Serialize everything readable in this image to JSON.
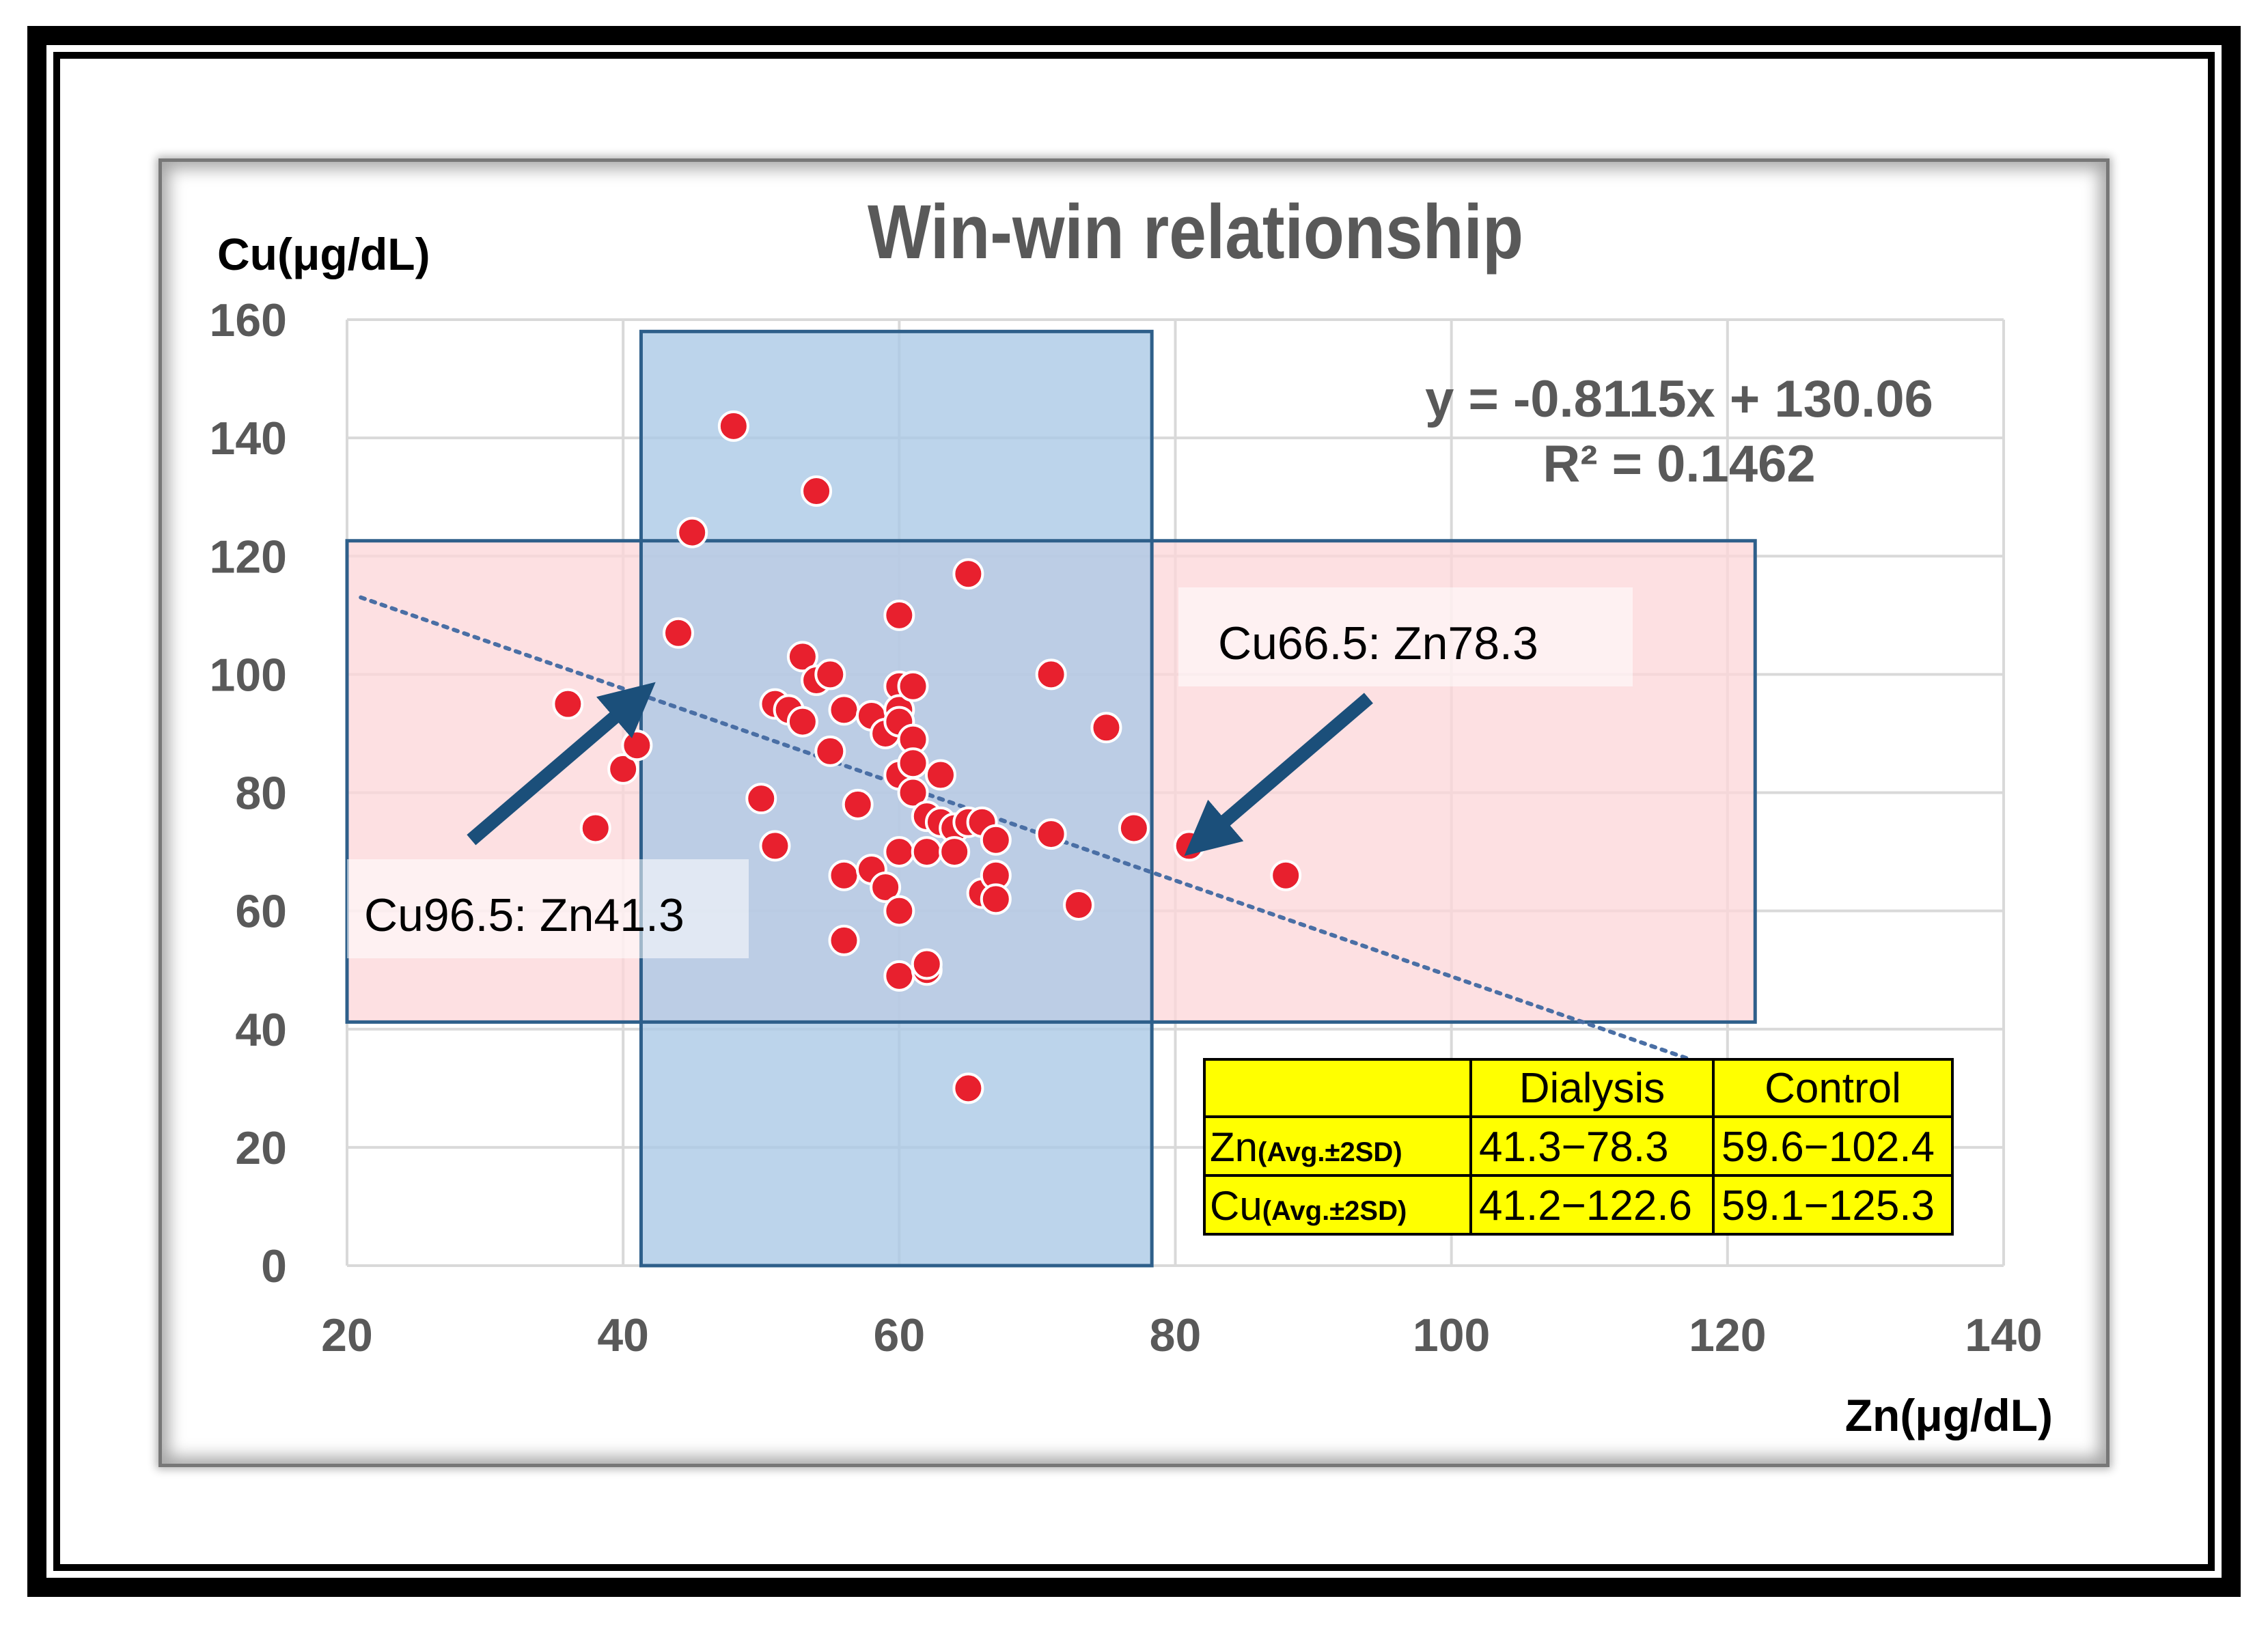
{
  "chart_data": {
    "type": "scatter",
    "title": "Win-win relationship",
    "xlabel": "Zn(μg/dL)",
    "ylabel": "Cu(μg/dL)",
    "xlim": [
      20,
      140
    ],
    "ylim": [
      0,
      160
    ],
    "x_ticks": [
      20,
      40,
      60,
      80,
      100,
      120,
      140
    ],
    "y_ticks": [
      0,
      20,
      40,
      60,
      80,
      100,
      120,
      140,
      160
    ],
    "grid": true,
    "trendline": {
      "equation": "y = -0.8115x + 130.06",
      "r_squared": "R² = 0.1462",
      "slope": -0.8115,
      "intercept": 130.06,
      "x_range": [
        21,
        118
      ]
    },
    "ranges": [
      {
        "name": "Dialysis Zn range",
        "x": [
          41.3,
          78.3
        ],
        "y": [
          0,
          158
        ],
        "color": "#a9c8e6"
      },
      {
        "name": "Dialysis Cu range",
        "x": [
          20,
          122
        ],
        "y": [
          41.2,
          122.6
        ],
        "color": "#fcd5d8"
      }
    ],
    "annotations": [
      {
        "text": "Cu66.5: Zn78.3",
        "arrow_from": [
          94,
          96
        ],
        "arrow_to": [
          82,
          72
        ]
      },
      {
        "text": "Cu96.5: Zn41.3",
        "arrow_from": [
          29,
          72
        ],
        "arrow_to": [
          41,
          96
        ]
      }
    ],
    "points": [
      [
        36,
        95
      ],
      [
        38,
        74
      ],
      [
        40,
        84
      ],
      [
        41,
        88
      ],
      [
        44,
        107
      ],
      [
        45,
        124
      ],
      [
        48,
        142
      ],
      [
        50,
        79
      ],
      [
        51,
        95
      ],
      [
        51,
        71
      ],
      [
        52,
        94
      ],
      [
        53,
        92
      ],
      [
        53,
        103
      ],
      [
        54,
        99
      ],
      [
        54,
        131
      ],
      [
        55,
        100
      ],
      [
        55,
        87
      ],
      [
        56,
        94
      ],
      [
        56,
        66
      ],
      [
        56,
        55
      ],
      [
        57,
        78
      ],
      [
        58,
        93
      ],
      [
        58,
        67
      ],
      [
        59,
        64
      ],
      [
        59,
        90
      ],
      [
        60,
        98
      ],
      [
        60,
        94
      ],
      [
        60,
        92
      ],
      [
        60,
        70
      ],
      [
        60,
        60
      ],
      [
        60,
        49
      ],
      [
        60,
        110
      ],
      [
        60,
        83
      ],
      [
        61,
        98
      ],
      [
        61,
        89
      ],
      [
        61,
        85
      ],
      [
        61,
        80
      ],
      [
        62,
        76
      ],
      [
        62,
        70
      ],
      [
        62,
        50
      ],
      [
        62,
        51
      ],
      [
        63,
        83
      ],
      [
        63,
        75
      ],
      [
        64,
        74
      ],
      [
        64,
        70
      ],
      [
        65,
        75
      ],
      [
        65,
        117
      ],
      [
        65,
        30
      ],
      [
        66,
        75
      ],
      [
        66,
        63
      ],
      [
        67,
        72
      ],
      [
        67,
        66
      ],
      [
        67,
        62
      ],
      [
        71,
        100
      ],
      [
        71,
        73
      ],
      [
        73,
        61
      ],
      [
        75,
        91
      ],
      [
        77,
        74
      ],
      [
        81,
        71
      ],
      [
        88,
        66
      ]
    ],
    "point_color": "#e8202e"
  },
  "stats_table": {
    "headers": [
      "",
      "Dialysis",
      "Control"
    ],
    "rows": [
      {
        "label": "Zn",
        "sub": "(Avg.±2SD)",
        "dialysis": "41.3−78.3",
        "control": "59.6−102.4"
      },
      {
        "label": "Cu",
        "sub": "(Avg.±2SD)",
        "dialysis": "41.2−122.6",
        "control": "59.1−125.3"
      }
    ],
    "bg_color": "#ffff00"
  }
}
